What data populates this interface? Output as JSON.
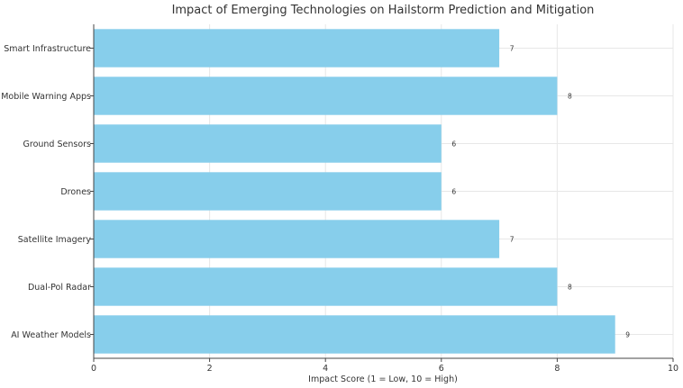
{
  "chart_data": {
    "type": "bar",
    "orientation": "horizontal",
    "title": "Impact of Emerging Technologies on Hailstorm Prediction and Mitigation",
    "xlabel": "Impact Score (1 = Low, 10 = High)",
    "ylabel": "",
    "categories": [
      "AI Weather Models",
      "Dual-Pol Radar",
      "Satellite Imagery",
      "Drones",
      "Ground Sensors",
      "Mobile Warning Apps",
      "Smart Infrastructure"
    ],
    "values": [
      9,
      8,
      7,
      6,
      6,
      8,
      7
    ],
    "xlim": [
      0,
      10
    ],
    "xticks": [
      0,
      2,
      4,
      6,
      8,
      10
    ],
    "grid": true,
    "bar_color": "#87ceeb",
    "data_labels": true
  }
}
